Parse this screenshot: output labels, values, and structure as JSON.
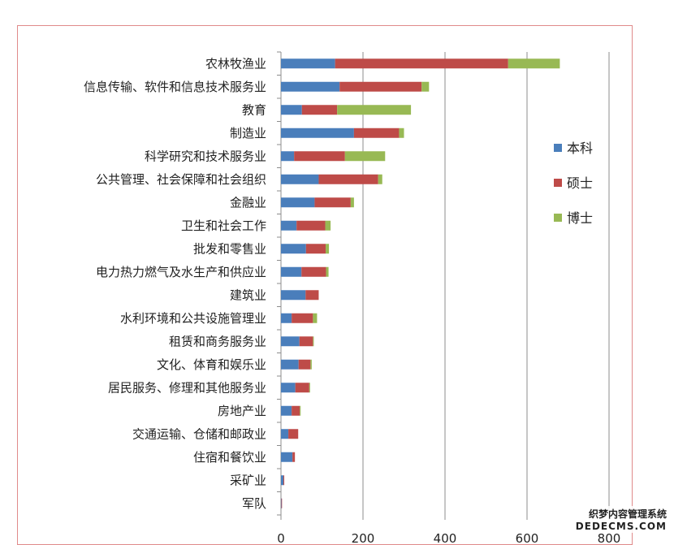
{
  "chart_data": {
    "type": "bar",
    "orientation": "horizontal",
    "stacked": true,
    "title": "",
    "xlabel": "",
    "ylabel": "",
    "xlim": [
      0,
      800
    ],
    "xticks": [
      0,
      200,
      400,
      600,
      800
    ],
    "grid": "vertical",
    "legend_position": "right",
    "categories": [
      "农林牧渔业",
      "信息传输、软件和信息技术服务业",
      "教育",
      "制造业",
      "科学研究和技术服务业",
      "公共管理、社会保障和社会组织",
      "金融业",
      "卫生和社会工作",
      "批发和零售业",
      "电力热力燃气及水生产和供应业",
      "建筑业",
      "水利环境和公共设施管理业",
      "租赁和商务服务业",
      "文化、体育和娱乐业",
      "居民服务、修理和其他服务业",
      "房地产业",
      "交通运输、仓储和邮政业",
      "住宿和餐饮业",
      "采矿业",
      "军队"
    ],
    "series": [
      {
        "name": "本科",
        "color": "#4a7ebb",
        "values": [
          132,
          143,
          51,
          178,
          32,
          92,
          82,
          38,
          61,
          50,
          60,
          26,
          45,
          43,
          35,
          26,
          18,
          28,
          6,
          1
        ]
      },
      {
        "name": "硕士",
        "color": "#be4b48",
        "values": [
          422,
          200,
          86,
          110,
          124,
          145,
          88,
          70,
          48,
          60,
          32,
          52,
          33,
          29,
          34,
          20,
          24,
          6,
          2,
          1
        ]
      },
      {
        "name": "博士",
        "color": "#98b954",
        "values": [
          126,
          18,
          180,
          12,
          98,
          10,
          8,
          13,
          8,
          6,
          0,
          10,
          2,
          3,
          2,
          2,
          0,
          0,
          0,
          0
        ]
      }
    ]
  },
  "watermark": {
    "line1": "织梦内容管理系统",
    "line2": "DEDECMS.COM"
  }
}
